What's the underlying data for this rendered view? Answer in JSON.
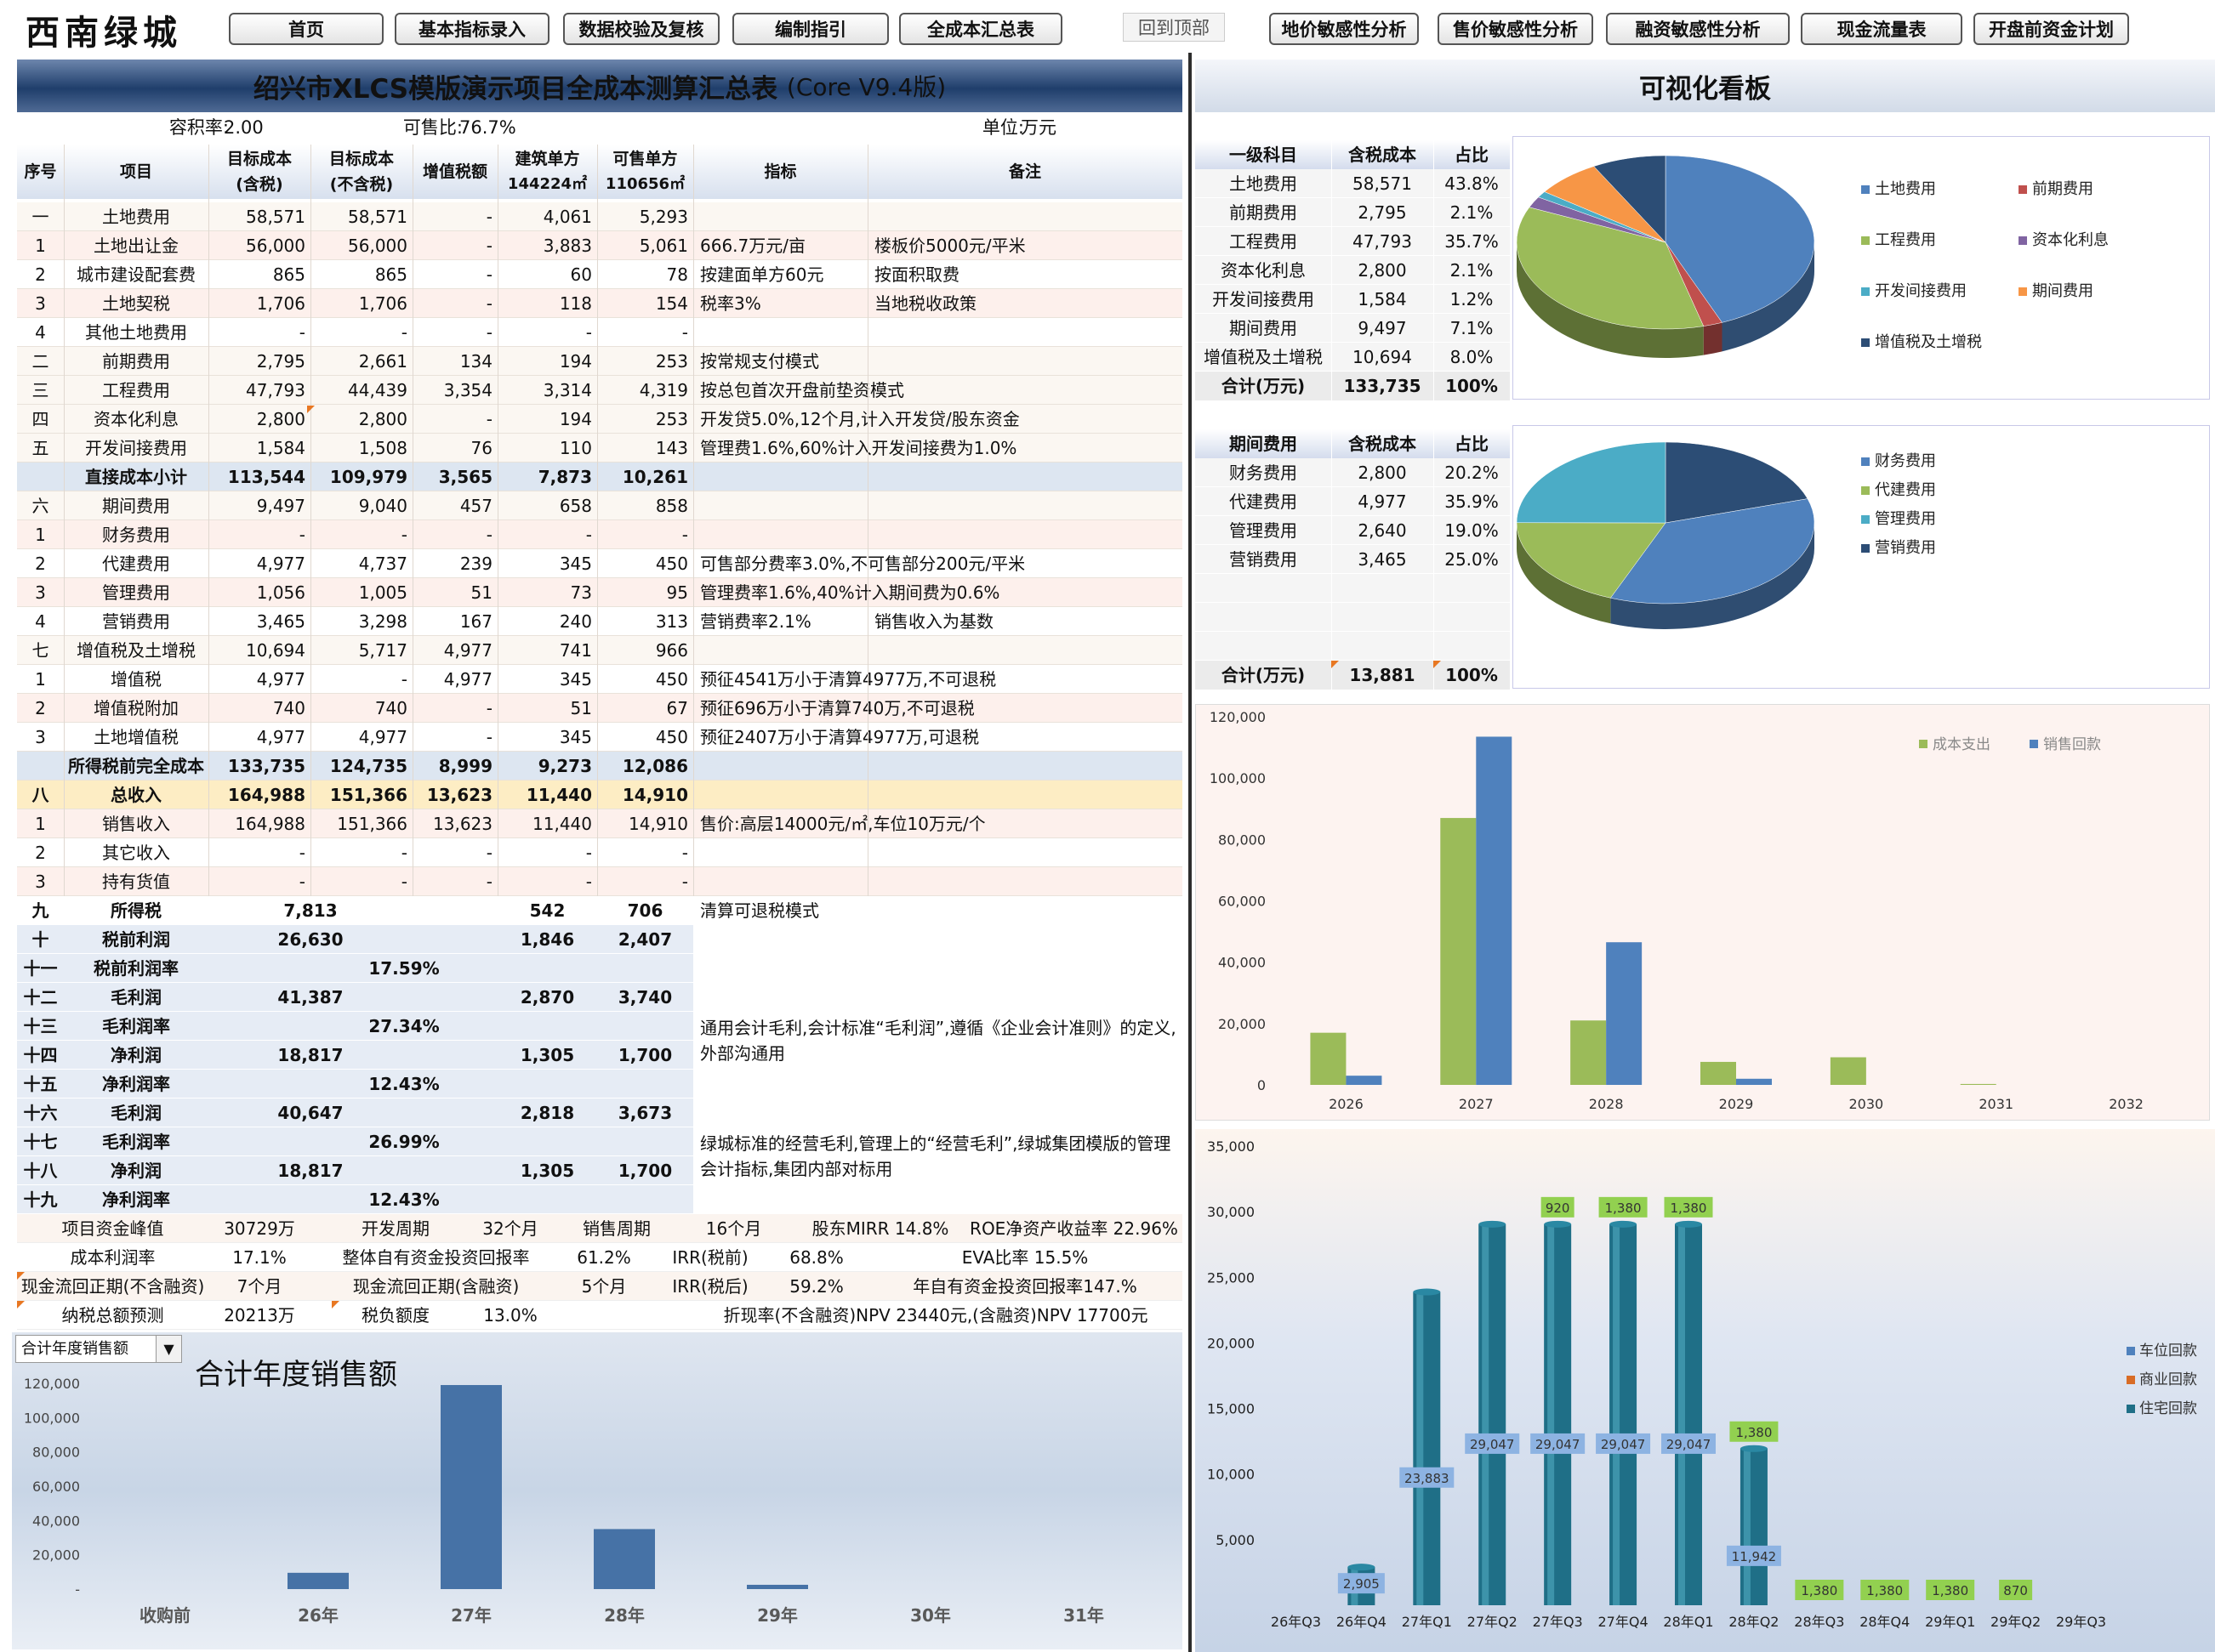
{
  "logo": "西南绿城",
  "nav": [
    "首页",
    "基本指标录入",
    "数据校验及复核",
    "编制指引",
    "全成本汇总表",
    "回到顶部",
    "地价敏感性分析",
    "售价敏感性分析",
    "融资敏感性分析",
    "现金流量表",
    "开盘前资金计划"
  ],
  "title": {
    "main": "绍兴市XLCS模版演示项目全成本测算汇总表",
    "version": "(Core V9.4版)"
  },
  "board_title": "可视化看板",
  "info": {
    "far_label": "容积率:",
    "far": "2.00",
    "sale_label": "可售比:",
    "sale": "76.7%",
    "unit_label": "单位:",
    "unit": "万元"
  },
  "headers": {
    "seq": "序号",
    "item": "项目",
    "target_tax": "目标成本\n(含税)",
    "target_notax": "目标成本\n(不含税)",
    "vat": "增值税额",
    "build": "建筑单方",
    "build_area": "144224㎡",
    "sell": "可售单方",
    "sell_area": "110656㎡",
    "index": "指标",
    "remark": "备注"
  },
  "rows": [
    [
      "一",
      "土地费用",
      "58,571",
      "58,571",
      "-",
      "4,061",
      "5,293",
      "",
      ""
    ],
    [
      "1",
      "土地出让金",
      "56,000",
      "56,000",
      "-",
      "3,883",
      "5,061",
      "666.7万元/亩",
      "楼板价5000元/平米"
    ],
    [
      "2",
      "城市建设配套费",
      "865",
      "865",
      "-",
      "60",
      "78",
      "按建面单方60元",
      "按面积取费"
    ],
    [
      "3",
      "土地契税",
      "1,706",
      "1,706",
      "-",
      "118",
      "154",
      "税率3%",
      "当地税收政策"
    ],
    [
      "4",
      "其他土地费用",
      "-",
      "-",
      "-",
      "-",
      "-",
      "",
      ""
    ],
    [
      "二",
      "前期费用",
      "2,795",
      "2,661",
      "134",
      "194",
      "253",
      "按常规支付模式",
      ""
    ],
    [
      "三",
      "工程费用",
      "47,793",
      "44,439",
      "3,354",
      "3,314",
      "4,319",
      "按总包首次开盘前垫资模式",
      ""
    ],
    [
      "四",
      "资本化利息",
      "2,800",
      "2,800",
      "-",
      "194",
      "253",
      " 开发贷5.0%,12个月,计入开发贷/股东资金",
      ""
    ],
    [
      "五",
      "开发间接费用",
      "1,584",
      "1,508",
      "76",
      "110",
      "143",
      " 管理费1.6%,60%计入开发间接费为1.0%",
      ""
    ],
    [
      "",
      "直接成本小计",
      "113,544",
      "109,979",
      "3,565",
      "7,873",
      "10,261",
      "",
      ""
    ],
    [
      "六",
      "期间费用",
      "9,497",
      "9,040",
      "457",
      "658",
      "858",
      "",
      ""
    ],
    [
      "1",
      "财务费用",
      "-",
      "-",
      "-",
      "-",
      "-",
      "",
      ""
    ],
    [
      "2",
      "代建费用",
      "4,977",
      "4,737",
      "239",
      "345",
      "450",
      " 可售部分费率3.0%,不可售部分200元/平米",
      ""
    ],
    [
      "3",
      "管理费用",
      "1,056",
      "1,005",
      "51",
      "73",
      "95",
      " 管理费率1.6%,40%计入期间费为0.6%",
      ""
    ],
    [
      "4",
      "营销费用",
      "3,465",
      "3,298",
      "167",
      "240",
      "313",
      "营销费率2.1%",
      "销售收入为基数"
    ],
    [
      "七",
      "增值税及土增税",
      "10,694",
      "5,717",
      "4,977",
      "741",
      "966",
      "",
      ""
    ],
    [
      "1",
      "增值税",
      "4,977",
      "-",
      "4,977",
      "345",
      "450",
      "预征4541万小于清算4977万,不可退税",
      ""
    ],
    [
      "2",
      "增值税附加",
      "740",
      "740",
      "-",
      "51",
      "67",
      " 预征696万小于清算740万,不可退税",
      ""
    ],
    [
      "3",
      "土地增值税",
      "4,977",
      "4,977",
      "-",
      "345",
      "450",
      "预征2407万小于清算4977万,可退税",
      ""
    ],
    [
      "",
      "所得税前完全成本",
      "133,735",
      "124,735",
      "8,999",
      "9,273",
      "12,086",
      "",
      ""
    ],
    [
      "八",
      "总收入",
      "164,988",
      "151,366",
      "13,623",
      "11,440",
      "14,910",
      "",
      ""
    ],
    [
      "1",
      "销售收入",
      "164,988",
      "151,366",
      "13,623",
      "11,440",
      "14,910",
      "售价:高层14000元/㎡,车位10万元/个",
      ""
    ],
    [
      "2",
      "其它收入",
      "-",
      "-",
      "-",
      "-",
      "-",
      "",
      ""
    ],
    [
      "3",
      "持有货值",
      "-",
      "-",
      "-",
      "-",
      "-",
      "",
      ""
    ]
  ],
  "profit_rows": [
    [
      "九",
      "所得税",
      "7,813",
      "542",
      "706",
      "清算可退税模式"
    ],
    [
      "十",
      "税前利润",
      "26,630",
      "1,846",
      "2,407",
      ""
    ],
    [
      "十一",
      "税前利润率",
      "17.59%",
      "",
      "",
      ""
    ],
    [
      "十二",
      "毛利润",
      "41,387",
      "2,870",
      "3,740",
      ""
    ],
    [
      "十三",
      "毛利润率",
      "27.34%",
      "",
      "",
      ""
    ],
    [
      "十四",
      "净利润",
      "18,817",
      "1,305",
      "1,700",
      ""
    ],
    [
      "十五",
      "净利润率",
      "12.43%",
      "",
      "",
      ""
    ],
    [
      "十六",
      "毛利润",
      "40,647",
      "2,818",
      "3,673",
      ""
    ],
    [
      "十七",
      "毛利润率",
      "26.99%",
      "",
      "",
      ""
    ],
    [
      "十八",
      "净利润",
      "18,817",
      "1,305",
      "1,700",
      ""
    ],
    [
      "十九",
      "净利润率",
      "12.43%",
      "",
      "",
      ""
    ]
  ],
  "profit_notes": [
    "通用会计毛利,会计标准“毛利润”,遵循《企业会计准则》的定义,外部沟通用",
    "绿城标准的经营毛利,管理上的“经营毛利”,绿城集团模版的管理会计指标,集团内部对标用"
  ],
  "metrics": [
    [
      "项目资金峰值",
      "30729万",
      "开发周期",
      "32个月",
      "销售周期",
      "16个月",
      "股东MIRR 14.8%",
      "ROE净资产收益率 22.96%"
    ],
    [
      "成本利润率",
      "17.1%",
      "整体自有资金投资回报率",
      "61.2%",
      "IRR(税前)",
      "68.8%",
      "EVA比率 15.5%",
      ""
    ],
    [
      "现金流回正期(不含融资)",
      "7个月",
      "现金流回正期(含融资)",
      "5个月",
      "IRR(税后)",
      "59.2%",
      "年自有资金投资回报率147.%",
      ""
    ],
    [
      "纳税总额预测",
      "20213万",
      "税负额度",
      "13.0%",
      "折现率(不含融资)NPV 23440元,(含融资)NPV 17700元",
      "",
      "",
      ""
    ]
  ],
  "select_value": "合计年度销售额",
  "pie1_table": {
    "headers": [
      "一级科目",
      "含税成本",
      "占比"
    ],
    "rows": [
      [
        "土地费用",
        "58,571",
        "43.8%"
      ],
      [
        "前期费用",
        "2,795",
        "2.1%"
      ],
      [
        "工程费用",
        "47,793",
        "35.7%"
      ],
      [
        "资本化利息",
        "2,800",
        "2.1%"
      ],
      [
        "开发间接费用",
        "1,584",
        "1.2%"
      ],
      [
        "期间费用",
        "9,497",
        "7.1%"
      ],
      [
        "增值税及土增税",
        "10,694",
        "8.0%"
      ]
    ],
    "total": [
      "合计(万元)",
      "133,735",
      "100%"
    ]
  },
  "pie2_table": {
    "headers": [
      "期间费用",
      "含税成本",
      "占比"
    ],
    "rows": [
      [
        "财务费用",
        "2,800",
        "20.2%"
      ],
      [
        "代建费用",
        "4,977",
        "35.9%"
      ],
      [
        "管理费用",
        "2,640",
        "19.0%"
      ],
      [
        "营销费用",
        "3,465",
        "25.0%"
      ]
    ],
    "total": [
      "合计(万元)",
      "13,881",
      "100%"
    ]
  },
  "colors": {
    "blue": "#4f81bd",
    "red": "#c0504d",
    "green": "#9bbb59",
    "purple": "#8064a2",
    "teal": "#4bacc6",
    "orange": "#f79646",
    "navy": "#2c4d75",
    "header_bg": "#dbe4f0",
    "teal_bar": "#1f6f87",
    "label_blue": "#8db3e2",
    "label_green": "#92d050"
  },
  "chart_data": [
    {
      "type": "pie",
      "title": "",
      "labels": [
        "土地费用",
        "前期费用",
        "工程费用",
        "资本化利息",
        "开发间接费用",
        "期间费用",
        "增值税及土增税"
      ],
      "values": [
        58571,
        2795,
        47793,
        2800,
        1584,
        9497,
        10694
      ]
    },
    {
      "type": "pie",
      "title": "",
      "labels": [
        "财务费用",
        "代建费用",
        "管理费用",
        "营销费用"
      ],
      "values": [
        2800,
        4977,
        2640,
        3465
      ]
    },
    {
      "type": "bar",
      "title": "",
      "categories": [
        "2026",
        "2027",
        "2028",
        "2029",
        "2030",
        "2031",
        "2032"
      ],
      "series": [
        {
          "name": "成本支出",
          "values": [
            17000,
            87000,
            21000,
            7500,
            9000,
            300,
            0
          ]
        },
        {
          "name": "销售回款",
          "values": [
            3000,
            113500,
            46500,
            2000,
            0,
            0,
            0
          ]
        }
      ],
      "ylim": [
        0,
        120000
      ],
      "yticks": [
        "0",
        "20,000",
        "40,000",
        "60,000",
        "80,000",
        "100,000",
        "120,000"
      ],
      "grid": false,
      "legend": "top-right"
    },
    {
      "type": "bar",
      "title": "合计年度销售额",
      "categories": [
        "收购前",
        "26年",
        "27年",
        "28年",
        "29年",
        "30年",
        "31年"
      ],
      "values": [
        0,
        9500,
        119000,
        35000,
        2500,
        0,
        0
      ],
      "ylim": [
        0,
        120000
      ],
      "yticks": [
        "-",
        "20,000",
        "40,000",
        "60,000",
        "80,000",
        "100,000",
        "120,000"
      ]
    },
    {
      "type": "bar",
      "title": "",
      "stacked": true,
      "categories": [
        "26年Q3",
        "26年Q4",
        "27年Q1",
        "27年Q2",
        "27年Q3",
        "27年Q4",
        "28年Q1",
        "28年Q2",
        "28年Q3",
        "28年Q4",
        "29年Q1",
        "29年Q2",
        "29年Q3"
      ],
      "series": [
        {
          "name": "住宅回款",
          "values": [
            0,
            2905,
            23883,
            29047,
            29047,
            29047,
            29047,
            11942,
            0,
            0,
            0,
            0,
            0
          ],
          "labels": [
            "",
            "2,905",
            "23,883",
            "29,047",
            "29,047",
            "29,047",
            "29,047",
            "11,942",
            "",
            "",
            "",
            "",
            ""
          ]
        },
        {
          "name": "商业回款",
          "values": [
            0,
            0,
            0,
            0,
            0,
            0,
            0,
            0,
            0,
            0,
            0,
            0,
            0
          ]
        },
        {
          "name": "车位回款",
          "values": [
            0,
            0,
            0,
            0,
            920,
            1380,
            1380,
            1380,
            1380,
            1380,
            1380,
            870,
            0
          ],
          "labels": [
            "",
            "",
            "",
            "",
            "920",
            "1,380",
            "1,380",
            "1,380",
            "1,380",
            "1,380",
            "1,380",
            "870",
            ""
          ]
        }
      ],
      "ylim": [
        0,
        35000
      ],
      "yticks": [
        "",
        "5,000",
        "10,000",
        "15,000",
        "20,000",
        "25,000",
        "30,000",
        "35,000"
      ],
      "legend": "right"
    }
  ]
}
